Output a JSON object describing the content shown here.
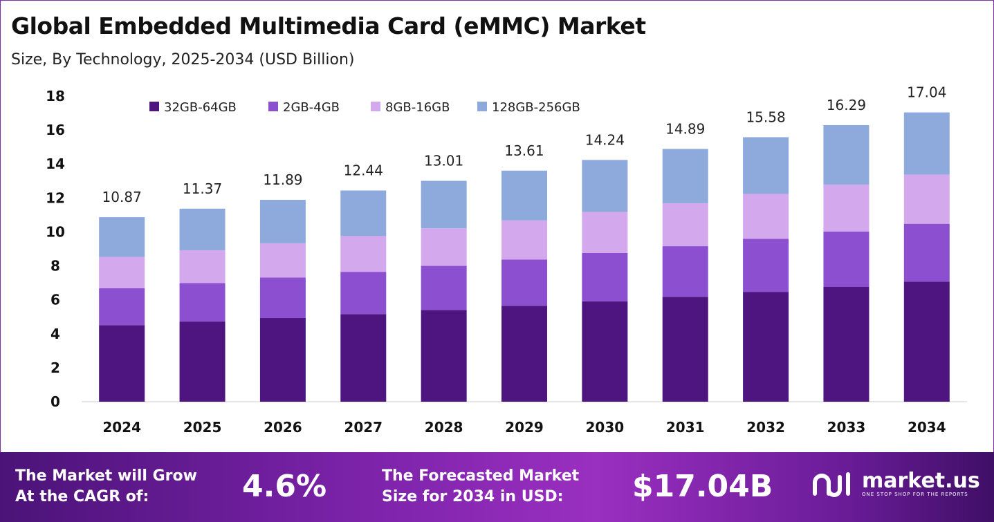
{
  "title": "Global Embedded Multimedia Card (eMMC) Market",
  "subtitle": "Size, By Technology, 2025-2034 (USD Billion)",
  "chart_data": {
    "type": "bar",
    "stacked": true,
    "categories": [
      "2024",
      "2025",
      "2026",
      "2027",
      "2028",
      "2029",
      "2030",
      "2031",
      "2032",
      "2033",
      "2034"
    ],
    "series": [
      {
        "name": "32GB-64GB",
        "color": "#4e1580",
        "values": [
          4.51,
          4.72,
          4.93,
          5.16,
          5.4,
          5.65,
          5.91,
          6.18,
          6.47,
          6.76,
          7.07
        ]
      },
      {
        "name": "2GB-4GB",
        "color": "#8b4fcf",
        "values": [
          2.17,
          2.27,
          2.38,
          2.49,
          2.6,
          2.72,
          2.85,
          2.98,
          3.12,
          3.26,
          3.41
        ]
      },
      {
        "name": "8GB-16GB",
        "color": "#d3a8ec",
        "values": [
          1.85,
          1.93,
          2.02,
          2.11,
          2.21,
          2.31,
          2.42,
          2.53,
          2.65,
          2.77,
          2.9
        ]
      },
      {
        "name": "128GB-256GB",
        "color": "#8eaadc",
        "values": [
          2.34,
          2.45,
          2.56,
          2.68,
          2.8,
          2.93,
          3.06,
          3.2,
          3.34,
          3.5,
          3.66
        ]
      }
    ],
    "totals": [
      "10.87",
      "11.37",
      "11.89",
      "12.44",
      "13.01",
      "13.61",
      "14.24",
      "14.89",
      "15.58",
      "16.29",
      "17.04"
    ],
    "yticks": [
      "0",
      "2",
      "4",
      "6",
      "8",
      "10",
      "12",
      "14",
      "16",
      "18"
    ],
    "ylim": [
      0,
      18
    ],
    "grid": false,
    "legend": "top-left"
  },
  "footer": {
    "cagr_label_1": "The Market will Grow",
    "cagr_label_2": "At the CAGR of:",
    "cagr_value": "4.6%",
    "forecast_label_1": "The Forecasted Market",
    "forecast_label_2": "Size for 2034 in USD:",
    "forecast_value": "$17.04B",
    "logo_name": "market.us",
    "logo_tagline": "ONE STOP SHOP FOR THE REPORTS"
  }
}
